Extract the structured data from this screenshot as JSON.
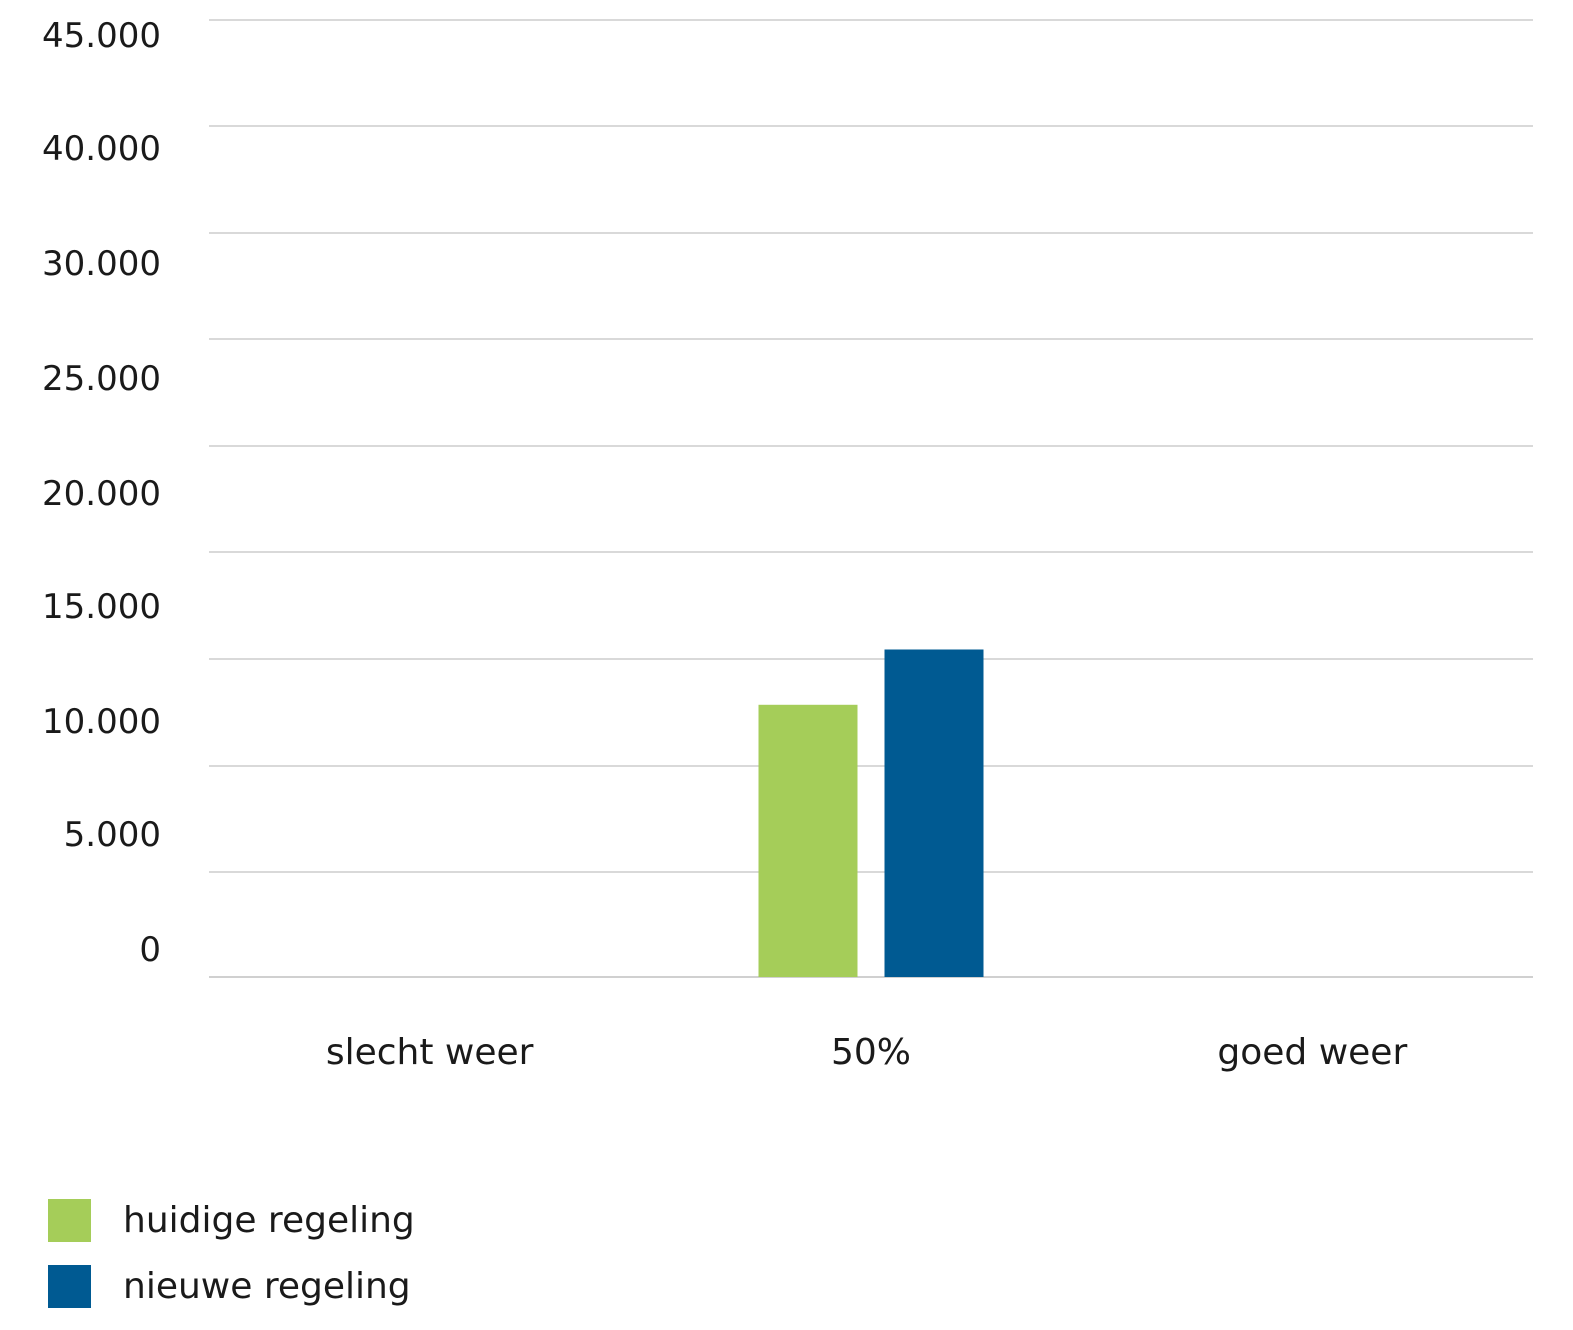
{
  "chart_data": {
    "type": "bar",
    "categories": [
      "slecht weer",
      "50%",
      "goed weer"
    ],
    "series": [
      {
        "name": "huidige regeling",
        "color": "#a5cd59",
        "values": [
          0,
          12800,
          0
        ]
      },
      {
        "name": "nieuwe regeling",
        "color": "#005a92",
        "values": [
          0,
          15400,
          0
        ]
      }
    ],
    "y_ticks": [
      {
        "value": 0,
        "label": "0"
      },
      {
        "value": 5000,
        "label": "5.000"
      },
      {
        "value": 10000,
        "label": "10.000"
      },
      {
        "value": 15000,
        "label": "15.000"
      },
      {
        "value": 20000,
        "label": "20.000"
      },
      {
        "value": 25000,
        "label": "25.000"
      },
      {
        "value": 30000,
        "label": "30.000"
      },
      {
        "value": 40000,
        "label": "40.000"
      },
      {
        "value": 45000,
        "label": "45.000"
      }
    ],
    "ylim": [
      0,
      45000
    ],
    "title": "",
    "xlabel": "",
    "ylabel": "",
    "grid": true,
    "legend_position": "bottom-left"
  }
}
